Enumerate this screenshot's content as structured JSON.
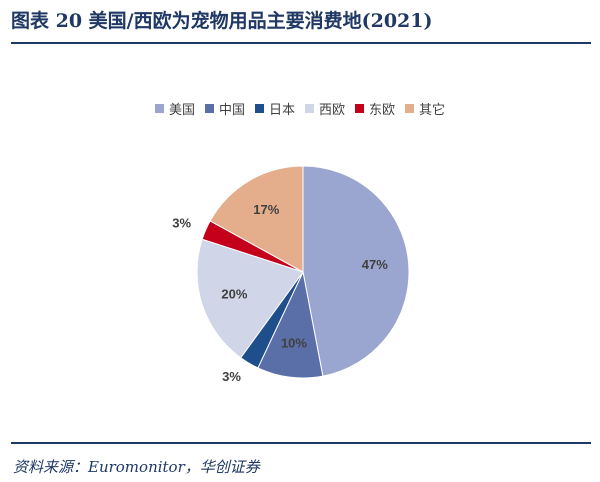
{
  "header": {
    "title": "图表 20 美国/西欧为宠物用品主要消费地(2021)"
  },
  "chart_data": {
    "type": "pie",
    "categories": [
      "美国",
      "中国",
      "日本",
      "西欧",
      "东欧",
      "其它"
    ],
    "values": [
      47,
      10,
      3,
      20,
      3,
      17
    ],
    "labels": [
      "47%",
      "10%",
      "3%",
      "20%",
      "3%",
      "17%"
    ],
    "colors": [
      "#9aa6cf",
      "#5a6ea8",
      "#1f4e8c",
      "#d0d5e8",
      "#c4001a",
      "#e4ae8c"
    ],
    "legend_position": "top"
  },
  "footer": {
    "source": "资料来源：Euromonitor，华创证券"
  }
}
